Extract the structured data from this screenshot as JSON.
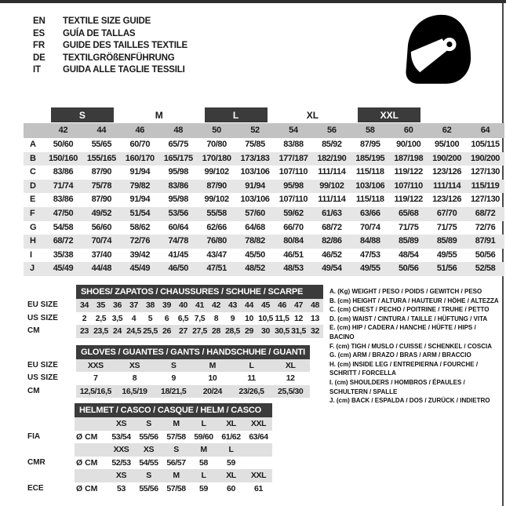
{
  "colors": {
    "dark_bar": "#3b3b3b",
    "size_row_bg": "#c2c2c2",
    "alt_row_bg": "#e6e6e6",
    "sub_shade_bg": "#e0e0e0",
    "bar_text": "#ffffff",
    "text": "#1a1a1a"
  },
  "header": {
    "languages": [
      {
        "code": "EN",
        "text": "TEXTILE SIZE GUIDE"
      },
      {
        "code": "ES",
        "text": "GUÍA DE TALLAS"
      },
      {
        "code": "FR",
        "text": "GUIDE DES TAILLES TEXTILE"
      },
      {
        "code": "DE",
        "text": "TEXTILGRÖßENFÜHRUNG"
      },
      {
        "code": "IT",
        "text": "GUIDA ALLE TAGLIE TESSILI"
      }
    ],
    "icon": "full-face-helmet-icon"
  },
  "main_table": {
    "groups": [
      {
        "label": "S",
        "dark": true
      },
      {
        "label": "M",
        "dark": false
      },
      {
        "label": "L",
        "dark": true
      },
      {
        "label": "XL",
        "dark": false
      },
      {
        "label": "XXL",
        "dark": true
      }
    ],
    "sizes": [
      "42",
      "44",
      "46",
      "48",
      "50",
      "52",
      "54",
      "56",
      "58",
      "60",
      "62",
      "64"
    ],
    "rows": [
      {
        "label": "A",
        "values": [
          "50/60",
          "55/65",
          "60/70",
          "65/75",
          "70/80",
          "75/85",
          "83/88",
          "85/92",
          "87/95",
          "90/100",
          "95/100",
          "105/115"
        ]
      },
      {
        "label": "B",
        "values": [
          "150/160",
          "155/165",
          "160/170",
          "165/175",
          "170/180",
          "173/183",
          "177/187",
          "182/190",
          "185/195",
          "187/198",
          "190/200",
          "190/200"
        ]
      },
      {
        "label": "C",
        "values": [
          "83/86",
          "87/90",
          "91/94",
          "95/98",
          "99/102",
          "103/106",
          "107/110",
          "111/114",
          "115/118",
          "119/122",
          "123/126",
          "127/130"
        ]
      },
      {
        "label": "D",
        "values": [
          "71/74",
          "75/78",
          "79/82",
          "83/86",
          "87/90",
          "91/94",
          "95/98",
          "99/102",
          "103/106",
          "107/110",
          "111/114",
          "115/119"
        ]
      },
      {
        "label": "E",
        "values": [
          "83/86",
          "87/90",
          "91/94",
          "95/98",
          "99/102",
          "103/106",
          "107/110",
          "111/114",
          "115/118",
          "119/122",
          "123/126",
          "127/130"
        ]
      },
      {
        "label": "F",
        "values": [
          "47/50",
          "49/52",
          "51/54",
          "53/56",
          "55/58",
          "57/60",
          "59/62",
          "61/63",
          "63/66",
          "65/68",
          "67/70",
          "68/72"
        ]
      },
      {
        "label": "G",
        "values": [
          "54/58",
          "56/60",
          "58/62",
          "60/64",
          "62/66",
          "64/68",
          "66/70",
          "68/72",
          "70/74",
          "71/75",
          "71/75",
          "72/76"
        ]
      },
      {
        "label": "H",
        "values": [
          "68/72",
          "70/74",
          "72/76",
          "74/78",
          "76/80",
          "78/82",
          "80/84",
          "82/86",
          "84/88",
          "85/89",
          "85/89",
          "87/91"
        ]
      },
      {
        "label": "I",
        "values": [
          "35/38",
          "37/40",
          "39/42",
          "41/45",
          "43/47",
          "45/50",
          "46/51",
          "46/52",
          "47/53",
          "48/54",
          "49/55",
          "50/56"
        ]
      },
      {
        "label": "J",
        "values": [
          "45/49",
          "44/48",
          "45/49",
          "46/50",
          "47/51",
          "48/52",
          "48/53",
          "49/54",
          "49/55",
          "50/56",
          "51/56",
          "52/58"
        ]
      }
    ]
  },
  "shoes_table": {
    "title": "SHOES/ ZAPATOS / CHAUSSURES / SCHUHE / SCARPE",
    "rows": [
      {
        "label": "EU SIZE",
        "shaded": true,
        "values": [
          "34",
          "35",
          "36",
          "37",
          "38",
          "39",
          "40",
          "41",
          "42",
          "43",
          "44",
          "45",
          "46",
          "47",
          "48"
        ]
      },
      {
        "label": "US SIZE",
        "shaded": false,
        "values": [
          "2",
          "2,5",
          "3,5",
          "4",
          "5",
          "6",
          "6,5",
          "7,5",
          "8",
          "9",
          "10",
          "10,5",
          "11,5",
          "12",
          "13"
        ]
      },
      {
        "label": "CM",
        "shaded": true,
        "values": [
          "23",
          "23,5",
          "24",
          "24,5",
          "25,5",
          "26",
          "27",
          "27,5",
          "28",
          "28,5",
          "29",
          "30",
          "30,5",
          "31,5",
          "32"
        ]
      }
    ]
  },
  "gloves_table": {
    "title": "GLOVES / GUANTES / GANTS / HANDSCHUHE / GUANTI",
    "rows": [
      {
        "label": "EU SIZE",
        "shaded": true,
        "values": [
          "XXS",
          "XS",
          "S",
          "M",
          "L",
          "XL"
        ]
      },
      {
        "label": "US SIZE",
        "shaded": false,
        "values": [
          "7",
          "8",
          "9",
          "10",
          "11",
          "12"
        ]
      },
      {
        "label": "CM",
        "shaded": true,
        "values": [
          "12,5/16,5",
          "16,5/19",
          "18/21,5",
          "20/24",
          "23/26,5",
          "25,5/30"
        ]
      }
    ]
  },
  "helmet_table": {
    "title": "HELMET / CASCO / CASQUE / HELM / CASCO",
    "rows": [
      {
        "label": "",
        "unit": "",
        "shaded": true,
        "values": [
          "XS",
          "S",
          "M",
          "L",
          "XL",
          "XXL"
        ]
      },
      {
        "label": "FIA",
        "unit": "Ø CM",
        "shaded": false,
        "values": [
          "53/54",
          "55/56",
          "57/58",
          "59/60",
          "61/62",
          "63/64"
        ]
      },
      {
        "label": "",
        "unit": "",
        "shaded": true,
        "values": [
          "XXS",
          "XS",
          "S",
          "M",
          "L",
          ""
        ]
      },
      {
        "label": "CMR",
        "unit": "Ø CM",
        "shaded": false,
        "values": [
          "52/53",
          "54/55",
          "56/57",
          "58",
          "59",
          ""
        ]
      },
      {
        "label": "",
        "unit": "",
        "shaded": true,
        "values": [
          "XS",
          "S",
          "M",
          "L",
          "XL",
          "XXL"
        ]
      },
      {
        "label": "ECE",
        "unit": "Ø CM",
        "shaded": false,
        "values": [
          "53",
          "55/56",
          "57/58",
          "59",
          "60",
          "61"
        ]
      }
    ]
  },
  "legend": {
    "items": [
      "A. (Kg) WEIGHT / PESO / POIDS / GEWITCH / PESO",
      "B. (cm) HEIGHT / ALTURA / HAUTEUR / HÖHE / ALTEZZA",
      "C. (cm) CHEST / PECHO / POITRINE / TRUHE / PETTO",
      "D. (cm) WAIST / CINTURA / TAILLE / HÜFTUNG / VITA",
      "E. (cm) HIP / CADERA / HANCHE / HÜFTE / HIPS / BACINO",
      "F. (cm) TIGH / MUSLO / CUISSE / SCHENKEL / COSCIA",
      "G. (cm) ARM / BRAZO / BRAS / ARM / BRACCIO",
      "H. (cm) INSIDE LEG / ENTREPIERNA / FOURCHE / SCHRITT / FORCELLA",
      "I. (cm) SHOULDERS / HOMBROS / ÉPAULES / SCHULTERN / SPALLE",
      "J. (cm) BACK / ESPALDA / DOS / ZURÜCK / INDIETRO"
    ]
  }
}
